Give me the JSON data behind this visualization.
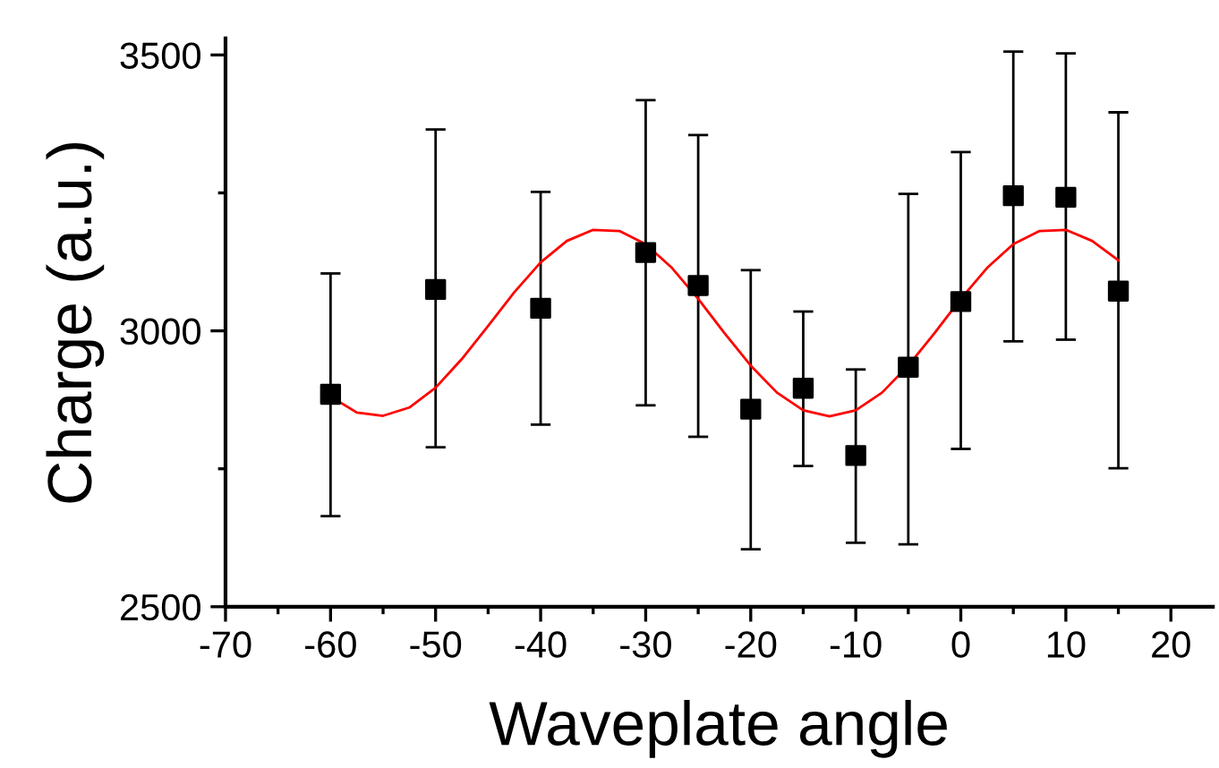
{
  "chart_data": {
    "type": "scatter",
    "xlabel": "Waveplate angle",
    "ylabel": "Charge (a.u.)",
    "xlim": [
      -70,
      24
    ],
    "xticks": [
      -70,
      -60,
      -50,
      -40,
      -30,
      -20,
      -10,
      0,
      10,
      20
    ],
    "ylim": [
      2500,
      3530
    ],
    "yticks": [
      2500,
      3000,
      3500
    ],
    "grid": false,
    "legend": false,
    "series": [
      {
        "color": "#000000",
        "marker": "square",
        "x": [
          -60,
          -50,
          -40,
          -30,
          -25,
          -20,
          -15,
          -10,
          -5,
          0,
          5,
          10,
          15
        ],
        "values": [
          2885,
          3075,
          3041,
          3142,
          3082,
          2858,
          2896,
          2774,
          2934,
          3053,
          3245,
          3242,
          3072
        ],
        "errors": [
          [
            2664,
            3104
          ],
          [
            2789,
            3365
          ],
          [
            2830,
            3252
          ],
          [
            2865,
            3418
          ],
          [
            2808,
            3355
          ],
          [
            2604,
            3110
          ],
          [
            2755,
            3035
          ],
          [
            2616,
            2930
          ],
          [
            2613,
            3248
          ],
          [
            2786,
            3324
          ],
          [
            2981,
            3506
          ],
          [
            2984,
            3503
          ],
          [
            2751,
            3396
          ]
        ]
      },
      {
        "type": "line",
        "color": "#ff0000",
        "marker": "none",
        "line_style": "solid",
        "x": [
          -60,
          -57.5,
          -55,
          -52.5,
          -50,
          -47.5,
          -45,
          -42.5,
          -40,
          -37.5,
          -35,
          -32.5,
          -30,
          -27.5,
          -25,
          -22.5,
          -20,
          -17.5,
          -15,
          -12.5,
          -10,
          -7.5,
          -5,
          -2.5,
          0,
          2.5,
          5,
          7.5,
          10,
          12.5,
          15
        ],
        "values": [
          2881,
          2852,
          2846,
          2861,
          2897,
          2949,
          3009,
          3070,
          3124,
          3163,
          3183,
          3181,
          3157,
          3114,
          3058,
          2996,
          2937,
          2888,
          2856,
          2845,
          2856,
          2888,
          2937,
          2996,
          3058,
          3114,
          3157,
          3181,
          3183,
          3163,
          3128
        ]
      }
    ]
  }
}
